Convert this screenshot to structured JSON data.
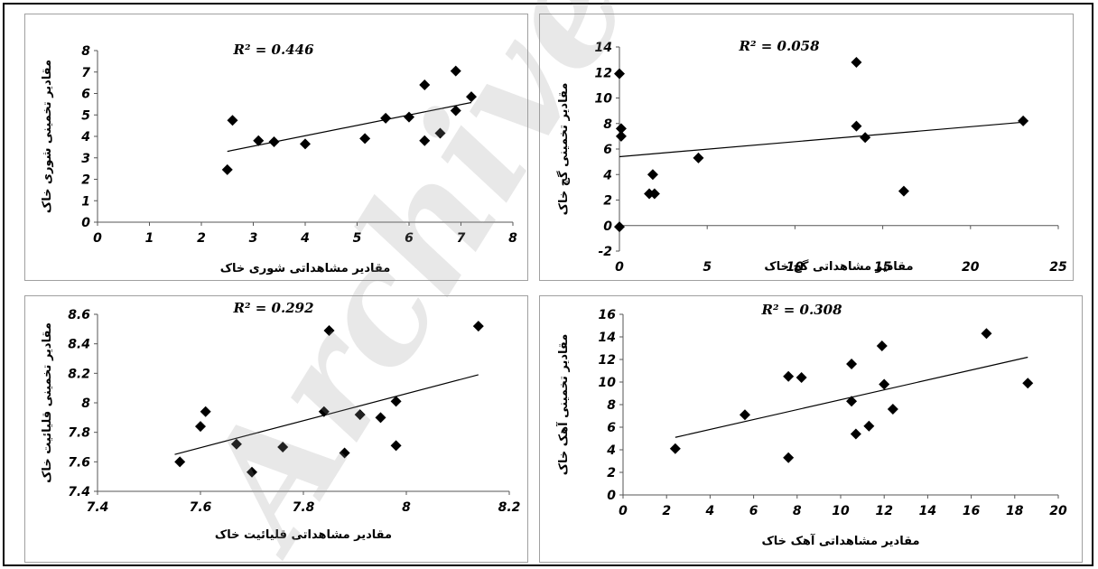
{
  "watermark": {
    "text": "Archive of SID",
    "color": "#c8c8c8"
  },
  "colors": {
    "frame": "#000000",
    "marker": "#000000",
    "trendline": "#000000",
    "panel_border": "#a0a0a0"
  },
  "chart_data": [
    {
      "id": "salinity",
      "type": "scatter",
      "r2_label": "R² = 0.446",
      "xlabel": "مقادیر مشاهداتی شوری خاک",
      "ylabel": "مقادیر تخمینی شوری خاک",
      "xlim": [
        0,
        8
      ],
      "ylim": [
        0,
        8
      ],
      "xticks": [
        0,
        1,
        2,
        3,
        4,
        5,
        6,
        7,
        8
      ],
      "yticks": [
        0,
        1,
        2,
        3,
        4,
        5,
        6,
        7,
        8
      ],
      "trendline": [
        [
          2.5,
          3.3
        ],
        [
          7.2,
          5.58
        ]
      ],
      "points": [
        [
          2.5,
          2.45
        ],
        [
          2.6,
          4.75
        ],
        [
          3.1,
          3.8
        ],
        [
          3.4,
          3.75
        ],
        [
          4.0,
          3.65
        ],
        [
          5.15,
          3.9
        ],
        [
          5.55,
          4.85
        ],
        [
          6.0,
          4.9
        ],
        [
          6.3,
          6.4
        ],
        [
          6.3,
          3.8
        ],
        [
          6.6,
          4.15
        ],
        [
          6.9,
          7.05
        ],
        [
          6.9,
          5.2
        ],
        [
          7.2,
          5.85
        ]
      ],
      "grid": false
    },
    {
      "id": "gypsum",
      "type": "scatter",
      "r2_label": "R² = 0.058",
      "xlabel": "مقادیر مشاهداتی گچ خاک",
      "ylabel": "مقادیر تخمینی گچ خاک",
      "xlim": [
        0,
        25
      ],
      "ylim": [
        -2,
        14
      ],
      "xticks": [
        0,
        5,
        10,
        15,
        20,
        25
      ],
      "yticks": [
        -2,
        0,
        2,
        4,
        6,
        8,
        10,
        12,
        14
      ],
      "trendline": [
        [
          0,
          5.4
        ],
        [
          23,
          8.1
        ]
      ],
      "points": [
        [
          0,
          11.9
        ],
        [
          0.1,
          7.6
        ],
        [
          0.1,
          7.0
        ],
        [
          0,
          -0.1
        ],
        [
          1.7,
          2.5
        ],
        [
          1.9,
          4.0
        ],
        [
          2.0,
          2.5
        ],
        [
          4.5,
          5.3
        ],
        [
          13.5,
          12.8
        ],
        [
          13.5,
          7.8
        ],
        [
          14.0,
          6.9
        ],
        [
          16.2,
          2.7
        ],
        [
          23.0,
          8.2
        ]
      ],
      "grid": false
    },
    {
      "id": "alkalinity",
      "type": "scatter",
      "r2_label": "R² = 0.292",
      "xlabel": "مقادیر مشاهداتی قلیائیت خاک",
      "ylabel": "مقادیر تخمینی قلیائیت خاک",
      "xlim": [
        7.4,
        8.2
      ],
      "ylim": [
        7.4,
        8.6
      ],
      "xticks": [
        7.4,
        7.6,
        7.8,
        8,
        8.2
      ],
      "yticks": [
        7.4,
        7.6,
        7.8,
        8,
        8.2,
        8.4,
        8.6
      ],
      "trendline": [
        [
          7.55,
          7.65
        ],
        [
          8.14,
          8.19
        ]
      ],
      "points": [
        [
          7.56,
          7.6
        ],
        [
          7.6,
          7.84
        ],
        [
          7.61,
          7.94
        ],
        [
          7.67,
          7.72
        ],
        [
          7.7,
          7.53
        ],
        [
          7.76,
          7.7
        ],
        [
          7.84,
          7.94
        ],
        [
          7.85,
          8.49
        ],
        [
          7.88,
          7.66
        ],
        [
          7.91,
          7.92
        ],
        [
          7.95,
          7.9
        ],
        [
          7.98,
          8.01
        ],
        [
          7.98,
          7.71
        ],
        [
          8.14,
          8.52
        ]
      ],
      "grid": false
    },
    {
      "id": "lime",
      "type": "scatter",
      "r2_label": "R² = 0.308",
      "xlabel": "مقادیر مشاهداتی آهک خاک",
      "ylabel": "مقادیر تخمینی آهک خاک",
      "xlim": [
        0,
        20
      ],
      "ylim": [
        0,
        16
      ],
      "xticks": [
        0,
        2,
        4,
        6,
        8,
        10,
        12,
        14,
        16,
        18,
        20
      ],
      "yticks": [
        0,
        2,
        4,
        6,
        8,
        10,
        12,
        14,
        16
      ],
      "trendline": [
        [
          2.4,
          5.1
        ],
        [
          18.6,
          12.2
        ]
      ],
      "points": [
        [
          2.4,
          4.1
        ],
        [
          5.6,
          7.1
        ],
        [
          7.6,
          10.5
        ],
        [
          7.6,
          3.3
        ],
        [
          8.2,
          10.4
        ],
        [
          10.5,
          11.6
        ],
        [
          10.5,
          8.3
        ],
        [
          10.7,
          5.4
        ],
        [
          11.3,
          6.1
        ],
        [
          11.9,
          13.2
        ],
        [
          12.0,
          9.8
        ],
        [
          12.4,
          7.6
        ],
        [
          16.7,
          14.3
        ],
        [
          18.6,
          9.9
        ]
      ],
      "grid": false
    }
  ]
}
